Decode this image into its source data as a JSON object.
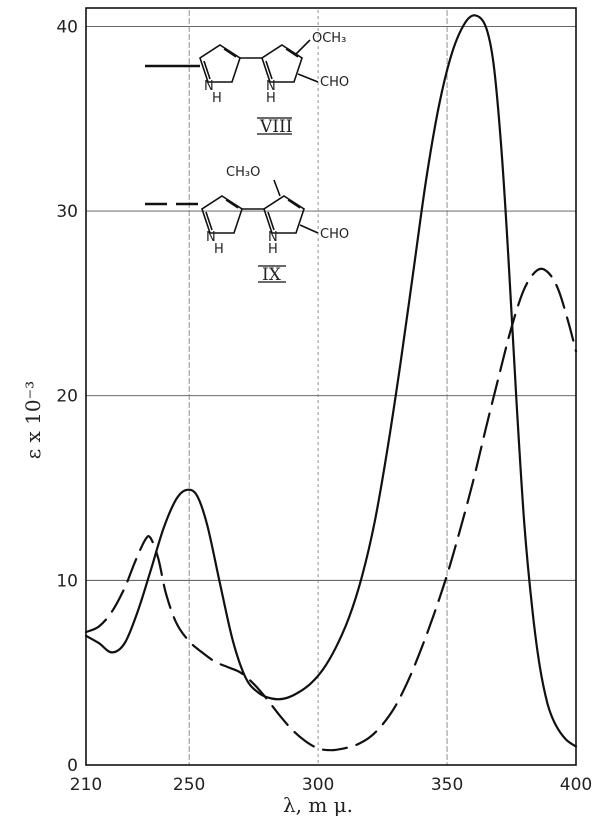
{
  "chart_data": {
    "type": "line",
    "xlabel": "λ, m μ.",
    "ylabel": "ε x 10⁻³",
    "xlim": [
      210,
      400
    ],
    "ylim": [
      0,
      41
    ],
    "x_ticks": [
      "210",
      "250",
      "300",
      "350",
      "400"
    ],
    "y_ticks": [
      "0",
      "10",
      "20",
      "30",
      "40"
    ],
    "grid": true,
    "legend": [
      {
        "id": "VIII",
        "line_style": "solid",
        "label": "VIII",
        "substituents": [
          "OCH₃",
          "CHO"
        ],
        "nh": [
          "H",
          "H"
        ]
      },
      {
        "id": "IX",
        "line_style": "dashed",
        "label": "IX",
        "substituents": [
          "CH₃O",
          "CHO"
        ],
        "nh": [
          "H",
          "H"
        ]
      }
    ],
    "series": [
      {
        "name": "VIII",
        "line_style": "solid",
        "points": [
          [
            210,
            7.0
          ],
          [
            215,
            6.6
          ],
          [
            220,
            6.1
          ],
          [
            225,
            6.6
          ],
          [
            230,
            8.3
          ],
          [
            235,
            10.5
          ],
          [
            240,
            12.8
          ],
          [
            245,
            14.4
          ],
          [
            249,
            14.9
          ],
          [
            253,
            14.6
          ],
          [
            257,
            13.0
          ],
          [
            262,
            9.8
          ],
          [
            267,
            6.7
          ],
          [
            272,
            4.7
          ],
          [
            277,
            3.9
          ],
          [
            282,
            3.6
          ],
          [
            287,
            3.6
          ],
          [
            292,
            3.9
          ],
          [
            297,
            4.4
          ],
          [
            302,
            5.2
          ],
          [
            307,
            6.4
          ],
          [
            312,
            8.0
          ],
          [
            317,
            10.2
          ],
          [
            322,
            13.2
          ],
          [
            327,
            17.2
          ],
          [
            332,
            21.8
          ],
          [
            337,
            26.8
          ],
          [
            342,
            31.8
          ],
          [
            347,
            35.8
          ],
          [
            352,
            38.6
          ],
          [
            357,
            40.2
          ],
          [
            361,
            40.6
          ],
          [
            365,
            40.0
          ],
          [
            368,
            38.0
          ],
          [
            371,
            33.5
          ],
          [
            374,
            27.0
          ],
          [
            377,
            19.5
          ],
          [
            380,
            13.0
          ],
          [
            383,
            8.5
          ],
          [
            386,
            5.3
          ],
          [
            389,
            3.3
          ],
          [
            392,
            2.2
          ],
          [
            396,
            1.4
          ],
          [
            400,
            1.0
          ]
        ]
      },
      {
        "name": "IX",
        "line_style": "dashed",
        "points": [
          [
            210,
            7.2
          ],
          [
            215,
            7.5
          ],
          [
            220,
            8.3
          ],
          [
            225,
            9.6
          ],
          [
            229,
            11.0
          ],
          [
            233,
            12.2
          ],
          [
            235,
            12.3
          ],
          [
            238,
            11.2
          ],
          [
            241,
            9.3
          ],
          [
            245,
            7.7
          ],
          [
            250,
            6.7
          ],
          [
            255,
            6.1
          ],
          [
            260,
            5.6
          ],
          [
            265,
            5.3
          ],
          [
            270,
            5.0
          ],
          [
            275,
            4.4
          ],
          [
            280,
            3.6
          ],
          [
            285,
            2.7
          ],
          [
            290,
            1.9
          ],
          [
            295,
            1.3
          ],
          [
            300,
            0.9
          ],
          [
            305,
            0.8
          ],
          [
            310,
            0.9
          ],
          [
            315,
            1.1
          ],
          [
            320,
            1.5
          ],
          [
            325,
            2.2
          ],
          [
            330,
            3.2
          ],
          [
            335,
            4.6
          ],
          [
            340,
            6.3
          ],
          [
            345,
            8.2
          ],
          [
            350,
            10.3
          ],
          [
            355,
            12.7
          ],
          [
            360,
            15.3
          ],
          [
            365,
            18.2
          ],
          [
            370,
            21.0
          ],
          [
            375,
            23.7
          ],
          [
            380,
            25.8
          ],
          [
            385,
            26.8
          ],
          [
            389,
            26.7
          ],
          [
            393,
            25.8
          ],
          [
            397,
            24.0
          ],
          [
            400,
            22.4
          ]
        ]
      }
    ]
  }
}
